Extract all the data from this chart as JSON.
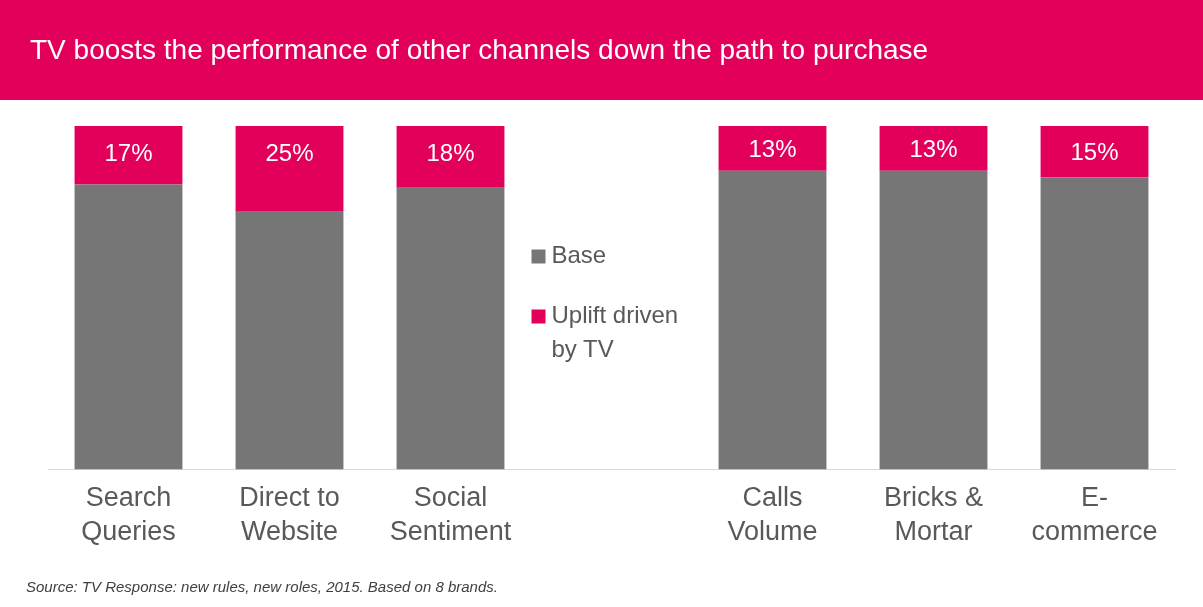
{
  "chart_data": {
    "type": "bar",
    "title": "TV boosts the performance of other channels down the path to purchase",
    "categories": [
      "Search Queries",
      "Direct to Website",
      "Social Sentiment",
      null,
      "Calls Volume",
      "Bricks & Mortar",
      "E-commerce"
    ],
    "stacked": true,
    "ylim": [
      0,
      100
    ],
    "tick_labels": "x",
    "grid": false,
    "legend": "center",
    "series": [
      {
        "name": "Base",
        "color": "#767676",
        "values": [
          83,
          75,
          82,
          null,
          87,
          87,
          85
        ]
      },
      {
        "name": "Uplift driven by TV",
        "color": "#e2005a",
        "values": [
          17,
          25,
          18,
          null,
          13,
          13,
          15
        ],
        "value_labels": [
          "17%",
          "25%",
          "18%",
          null,
          "13%",
          "13%",
          "15%"
        ]
      }
    ],
    "annotations": [
      "Source: TV Response: new rules, new roles, 2015. Based on 8 brands."
    ]
  }
}
